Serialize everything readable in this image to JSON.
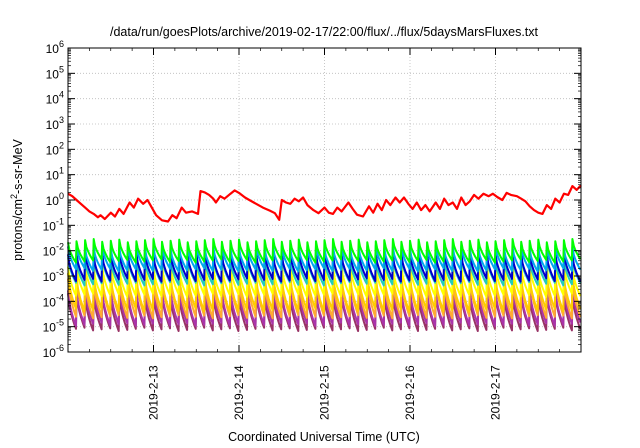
{
  "chart_data": {
    "type": "line",
    "title": "/data/run/goesPlots/archive/2019-02-17/22:00/flux/../flux/5daysMarsFluxes.txt",
    "xlabel": "Coordinated Universal Time (UTC)",
    "ylabel": "protons/cm²-s-sr-MeV",
    "ylabel_parts": {
      "pre": "protons/cm",
      "sup": "2",
      "post": "-s-sr-MeV"
    },
    "yscale": "log",
    "ylim_exp": [
      -6,
      6
    ],
    "xlim_days": [
      12.0,
      18.0
    ],
    "x_ticks": [
      {
        "day": 13,
        "label": "2019-2-13"
      },
      {
        "day": 14,
        "label": "2019-2-14"
      },
      {
        "day": 15,
        "label": "2019-2-15"
      },
      {
        "day": 16,
        "label": "2019-2-16"
      },
      {
        "day": 17,
        "label": "2019-2-17"
      }
    ],
    "y_tick_exponents": [
      -6,
      -5,
      -4,
      -3,
      -2,
      -1,
      0,
      1,
      2,
      3,
      4,
      5,
      6
    ],
    "grid": true,
    "legend": "none",
    "oscillating_series": {
      "cycles": 60,
      "colors": [
        "#00ff00",
        "#00aaee",
        "#0000cc",
        "#22ccbb",
        "#ffff00",
        "#ffcc00",
        "#ffaa33",
        "#aa33aa",
        "#993366"
      ],
      "peak_exp": [
        -1.6,
        -1.85,
        -2.1,
        -2.3,
        -2.6,
        -2.95,
        -3.1,
        -3.5,
        -3.7
      ],
      "trough_exp": [
        -2.4,
        -2.75,
        -3.15,
        -3.3,
        -3.75,
        -4.35,
        -4.6,
        -4.9,
        -5.1
      ]
    },
    "series": [
      {
        "color": "#ff0000",
        "points": [
          [
            12.0,
            0.25
          ],
          [
            12.05,
            0.15
          ],
          [
            12.1,
            0.0
          ],
          [
            12.15,
            -0.15
          ],
          [
            12.2,
            -0.3
          ],
          [
            12.25,
            -0.45
          ],
          [
            12.3,
            -0.55
          ],
          [
            12.35,
            -0.68
          ],
          [
            12.38,
            -0.6
          ],
          [
            12.43,
            -0.75
          ],
          [
            12.5,
            -0.5
          ],
          [
            12.55,
            -0.65
          ],
          [
            12.6,
            -0.35
          ],
          [
            12.65,
            -0.55
          ],
          [
            12.72,
            -0.1
          ],
          [
            12.77,
            -0.3
          ],
          [
            12.82,
            0.05
          ],
          [
            12.88,
            -0.15
          ],
          [
            12.93,
            0.0
          ],
          [
            12.98,
            -0.3
          ],
          [
            13.03,
            -0.6
          ],
          [
            13.1,
            -0.8
          ],
          [
            13.17,
            -0.85
          ],
          [
            13.22,
            -0.6
          ],
          [
            13.27,
            -0.72
          ],
          [
            13.33,
            -0.3
          ],
          [
            13.38,
            -0.5
          ],
          [
            13.45,
            -0.45
          ],
          [
            13.52,
            -0.55
          ],
          [
            13.55,
            0.35
          ],
          [
            13.6,
            0.3
          ],
          [
            13.65,
            0.2
          ],
          [
            13.7,
            0.05
          ],
          [
            13.73,
            -0.1
          ],
          [
            13.78,
            0.15
          ],
          [
            13.83,
            0.05
          ],
          [
            13.9,
            0.25
          ],
          [
            13.95,
            0.38
          ],
          [
            14.0,
            0.28
          ],
          [
            14.07,
            0.1
          ],
          [
            14.12,
            0.0
          ],
          [
            14.2,
            -0.15
          ],
          [
            14.28,
            -0.3
          ],
          [
            14.36,
            -0.42
          ],
          [
            14.42,
            -0.52
          ],
          [
            14.47,
            -0.78
          ],
          [
            14.5,
            0.0
          ],
          [
            14.55,
            -0.1
          ],
          [
            14.6,
            -0.15
          ],
          [
            14.65,
            0.05
          ],
          [
            14.7,
            -0.05
          ],
          [
            14.75,
            0.1
          ],
          [
            14.8,
            -0.2
          ],
          [
            14.87,
            -0.4
          ],
          [
            14.93,
            -0.52
          ],
          [
            15.0,
            -0.3
          ],
          [
            15.05,
            -0.5
          ],
          [
            15.1,
            -0.55
          ],
          [
            15.15,
            -0.3
          ],
          [
            15.2,
            -0.45
          ],
          [
            15.28,
            -0.1
          ],
          [
            15.33,
            -0.35
          ],
          [
            15.38,
            -0.58
          ],
          [
            15.45,
            -0.65
          ],
          [
            15.52,
            -0.25
          ],
          [
            15.57,
            -0.5
          ],
          [
            15.62,
            -0.15
          ],
          [
            15.67,
            -0.4
          ],
          [
            15.72,
            0.0
          ],
          [
            15.77,
            -0.2
          ],
          [
            15.83,
            0.1
          ],
          [
            15.88,
            -0.1
          ],
          [
            15.93,
            0.1
          ],
          [
            15.98,
            -0.15
          ],
          [
            16.03,
            -0.35
          ],
          [
            16.08,
            -0.1
          ],
          [
            16.13,
            -0.4
          ],
          [
            16.18,
            -0.2
          ],
          [
            16.23,
            -0.45
          ],
          [
            16.3,
            -0.1
          ],
          [
            16.35,
            -0.35
          ],
          [
            16.4,
            0.05
          ],
          [
            16.45,
            -0.2
          ],
          [
            16.5,
            -0.1
          ],
          [
            16.55,
            -0.35
          ],
          [
            16.6,
            0.1
          ],
          [
            16.65,
            -0.2
          ],
          [
            16.7,
            -0.05
          ],
          [
            16.75,
            0.2
          ],
          [
            16.8,
            0.05
          ],
          [
            16.86,
            0.25
          ],
          [
            16.92,
            0.15
          ],
          [
            16.97,
            0.25
          ],
          [
            17.02,
            0.12
          ],
          [
            17.08,
            0.0
          ],
          [
            17.13,
            0.28
          ],
          [
            17.18,
            0.2
          ],
          [
            17.25,
            0.15
          ],
          [
            17.3,
            0.05
          ],
          [
            17.35,
            -0.05
          ],
          [
            17.4,
            -0.25
          ],
          [
            17.45,
            -0.4
          ],
          [
            17.5,
            -0.5
          ],
          [
            17.55,
            -0.55
          ],
          [
            17.6,
            -0.2
          ],
          [
            17.65,
            -0.35
          ],
          [
            17.7,
            0.05
          ],
          [
            17.75,
            -0.1
          ],
          [
            17.8,
            0.25
          ],
          [
            17.85,
            0.2
          ],
          [
            17.9,
            0.55
          ],
          [
            17.95,
            0.4
          ],
          [
            18.0,
            0.58
          ]
        ]
      }
    ]
  }
}
